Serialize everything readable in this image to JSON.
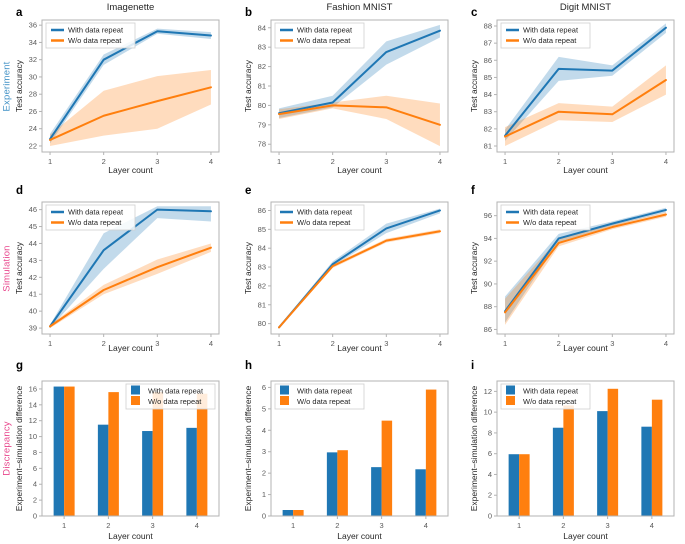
{
  "figure": {
    "background": "#ffffff",
    "row_labels": [
      {
        "label": "Experiment",
        "color": "#4292c6"
      },
      {
        "label": "Simulation",
        "color": "#e8468c"
      },
      {
        "label": "Discrepancy",
        "color": "#e8468c"
      }
    ],
    "column_titles": [
      "Imagenette",
      "Fashion MNIST",
      "Digit MNIST"
    ],
    "legend_labels": [
      "With data repeat",
      "W/o data repeat"
    ],
    "colors": {
      "with_repeat": "#1f77b4",
      "without_repeat": "#ff7f0e",
      "spine": "#b3b3b3",
      "tick_text": "#595959"
    }
  },
  "chart_data": [
    {
      "id": "a",
      "letter": "a",
      "type": "line",
      "row": 0,
      "col": 0,
      "title": "Imagenette",
      "xlabel": "Layer count",
      "ylabel": "Test accuracy",
      "x": [
        1,
        2,
        3,
        4
      ],
      "xticks": [
        1,
        2,
        3,
        4
      ],
      "ylim": [
        21.3,
        36.6
      ],
      "yticks": [
        22,
        24,
        26,
        28,
        30,
        32,
        34,
        36
      ],
      "legend_pos": "upper-left",
      "legend_marker": "line",
      "series": [
        {
          "name": "With data repeat",
          "color": "#1f77b4",
          "values": [
            22.8,
            32.0,
            35.3,
            34.8
          ],
          "band_lo": [
            22.3,
            31.4,
            35.0,
            34.4
          ],
          "band_hi": [
            23.4,
            32.6,
            35.6,
            35.2
          ]
        },
        {
          "name": "W/o data repeat",
          "color": "#ff7f0e",
          "values": [
            22.7,
            25.5,
            27.2,
            28.8
          ],
          "band_lo": [
            22.0,
            23.2,
            24.0,
            26.8
          ],
          "band_hi": [
            23.3,
            28.4,
            30.1,
            30.8
          ]
        }
      ]
    },
    {
      "id": "b",
      "letter": "b",
      "type": "line",
      "row": 0,
      "col": 1,
      "title": "Fashion MNIST",
      "xlabel": "Layer count",
      "ylabel": "Test accuracy",
      "x": [
        1,
        2,
        3,
        4
      ],
      "xticks": [
        1,
        2,
        3,
        4
      ],
      "ylim": [
        77.6,
        84.4
      ],
      "yticks": [
        78,
        79,
        80,
        81,
        82,
        83,
        84
      ],
      "legend_pos": "upper-left",
      "legend_marker": "line",
      "series": [
        {
          "name": "With data repeat",
          "color": "#1f77b4",
          "values": [
            79.6,
            80.15,
            82.75,
            83.85
          ],
          "band_lo": [
            79.35,
            79.9,
            82.1,
            83.5
          ],
          "band_hi": [
            79.85,
            80.5,
            83.3,
            84.15
          ]
        },
        {
          "name": "W/o data repeat",
          "color": "#ff7f0e",
          "values": [
            79.55,
            80.0,
            79.9,
            79.0
          ],
          "band_lo": [
            79.3,
            79.85,
            79.3,
            77.9
          ],
          "band_hi": [
            79.8,
            80.15,
            80.5,
            80.1
          ]
        }
      ]
    },
    {
      "id": "c",
      "letter": "c",
      "type": "line",
      "row": 0,
      "col": 2,
      "title": "Digit MNIST",
      "xlabel": "Layer count",
      "ylabel": "Test accuracy",
      "x": [
        1,
        2,
        3,
        4
      ],
      "xticks": [
        1,
        2,
        3,
        4
      ],
      "ylim": [
        80.65,
        88.35
      ],
      "yticks": [
        81,
        82,
        83,
        84,
        85,
        86,
        87,
        88
      ],
      "legend_pos": "upper-left",
      "legend_marker": "line",
      "series": [
        {
          "name": "With data repeat",
          "color": "#1f77b4",
          "values": [
            81.6,
            85.5,
            85.4,
            87.9
          ],
          "band_lo": [
            81.3,
            84.8,
            85.1,
            87.6
          ],
          "band_hi": [
            81.95,
            86.2,
            85.7,
            88.15
          ]
        },
        {
          "name": "W/o data repeat",
          "color": "#ff7f0e",
          "values": [
            81.55,
            83.0,
            82.85,
            84.85
          ],
          "band_lo": [
            81.0,
            82.5,
            82.4,
            84.0
          ],
          "band_hi": [
            82.1,
            83.5,
            83.3,
            85.7
          ]
        }
      ]
    },
    {
      "id": "d",
      "letter": "d",
      "type": "line",
      "row": 1,
      "col": 0,
      "title": "",
      "xlabel": "Layer count",
      "ylabel": "Test accuracy",
      "x": [
        1,
        2,
        3,
        4
      ],
      "xticks": [
        1,
        2,
        3,
        4
      ],
      "ylim": [
        38.65,
        46.45
      ],
      "yticks": [
        39,
        40,
        41,
        42,
        43,
        44,
        45,
        46
      ],
      "legend_pos": "upper-left",
      "legend_marker": "line",
      "series": [
        {
          "name": "With data repeat",
          "color": "#1f77b4",
          "values": [
            39.1,
            43.6,
            46.0,
            45.9
          ],
          "band_lo": [
            39.0,
            42.5,
            45.5,
            45.3
          ],
          "band_hi": [
            39.2,
            44.6,
            46.2,
            46.2
          ]
        },
        {
          "name": "W/o data repeat",
          "color": "#ff7f0e",
          "values": [
            39.1,
            41.25,
            42.6,
            43.75
          ],
          "band_lo": [
            39.0,
            41.0,
            42.2,
            43.5
          ],
          "band_hi": [
            39.2,
            41.55,
            43.05,
            44.0
          ]
        }
      ]
    },
    {
      "id": "e",
      "letter": "e",
      "type": "line",
      "row": 1,
      "col": 1,
      "title": "",
      "xlabel": "Layer count",
      "ylabel": "Test accuracy",
      "x": [
        1,
        2,
        3,
        4
      ],
      "xticks": [
        1,
        2,
        3,
        4
      ],
      "ylim": [
        79.45,
        86.45
      ],
      "yticks": [
        80,
        81,
        82,
        83,
        84,
        85,
        86
      ],
      "legend_pos": "upper-left",
      "legend_marker": "line",
      "series": [
        {
          "name": "With data repeat",
          "color": "#1f77b4",
          "values": [
            79.8,
            83.15,
            85.05,
            86.0
          ],
          "band_lo": [
            79.75,
            83.05,
            84.8,
            85.85
          ],
          "band_hi": [
            79.85,
            83.3,
            85.3,
            86.1
          ]
        },
        {
          "name": "W/o data repeat",
          "color": "#ff7f0e",
          "values": [
            79.8,
            83.05,
            84.4,
            84.9
          ],
          "band_lo": [
            79.75,
            82.95,
            84.3,
            84.8
          ],
          "band_hi": [
            79.85,
            83.15,
            84.5,
            85.0
          ]
        }
      ]
    },
    {
      "id": "f",
      "letter": "f",
      "type": "line",
      "row": 1,
      "col": 2,
      "title": "",
      "xlabel": "Layer count",
      "ylabel": "Test accuracy",
      "x": [
        1,
        2,
        3,
        4
      ],
      "xticks": [
        1,
        2,
        3,
        4
      ],
      "ylim": [
        85.6,
        97.2
      ],
      "yticks": [
        86,
        88,
        90,
        92,
        94,
        96
      ],
      "legend_pos": "upper-left",
      "legend_marker": "line",
      "series": [
        {
          "name": "With data repeat",
          "color": "#1f77b4",
          "values": [
            87.6,
            94.0,
            95.3,
            96.5
          ],
          "band_lo": [
            86.6,
            93.7,
            95.1,
            96.3
          ],
          "band_hi": [
            88.9,
            94.4,
            95.5,
            96.7
          ]
        },
        {
          "name": "W/o data repeat",
          "color": "#ff7f0e",
          "values": [
            87.5,
            93.6,
            95.0,
            96.1
          ],
          "band_lo": [
            86.4,
            93.3,
            94.8,
            95.9
          ],
          "band_hi": [
            88.7,
            94.0,
            95.2,
            96.3
          ]
        }
      ]
    },
    {
      "id": "g",
      "letter": "g",
      "type": "bar",
      "row": 2,
      "col": 0,
      "title": "",
      "xlabel": "Layer count",
      "ylabel": "Experiment–simulation difference",
      "categories": [
        1,
        2,
        3,
        4
      ],
      "ylim": [
        0,
        17
      ],
      "yticks": [
        0,
        2,
        4,
        6,
        8,
        10,
        12,
        14,
        16
      ],
      "legend_pos": "upper-right",
      "legend_marker": "square",
      "series": [
        {
          "name": "With data repeat",
          "color": "#1f77b4",
          "values": [
            16.3,
            11.5,
            10.7,
            11.1
          ]
        },
        {
          "name": "W/o data repeat",
          "color": "#ff7f0e",
          "values": [
            16.3,
            15.6,
            15.6,
            15.4
          ]
        }
      ]
    },
    {
      "id": "h",
      "letter": "h",
      "type": "bar",
      "row": 2,
      "col": 1,
      "title": "",
      "xlabel": "Layer count",
      "ylabel": "Experiment–simulation difference",
      "categories": [
        1,
        2,
        3,
        4
      ],
      "ylim": [
        0,
        6.3
      ],
      "yticks": [
        0,
        1,
        2,
        3,
        4,
        5,
        6
      ],
      "legend_pos": "upper-left",
      "legend_marker": "square",
      "series": [
        {
          "name": "With data repeat",
          "color": "#1f77b4",
          "values": [
            0.28,
            2.97,
            2.28,
            2.18
          ]
        },
        {
          "name": "W/o data repeat",
          "color": "#ff7f0e",
          "values": [
            0.28,
            3.07,
            4.45,
            5.9
          ]
        }
      ]
    },
    {
      "id": "i",
      "letter": "i",
      "type": "bar",
      "row": 2,
      "col": 2,
      "title": "",
      "xlabel": "Layer count",
      "ylabel": "Experiment–simulation difference",
      "categories": [
        1,
        2,
        3,
        4
      ],
      "ylim": [
        0,
        13
      ],
      "yticks": [
        0,
        2,
        4,
        6,
        8,
        10,
        12
      ],
      "legend_pos": "upper-left",
      "legend_marker": "square",
      "series": [
        {
          "name": "With data repeat",
          "color": "#1f77b4",
          "values": [
            5.95,
            8.5,
            10.1,
            8.6
          ]
        },
        {
          "name": "W/o data repeat",
          "color": "#ff7f0e",
          "values": [
            5.95,
            10.65,
            12.25,
            11.2
          ]
        }
      ]
    }
  ]
}
